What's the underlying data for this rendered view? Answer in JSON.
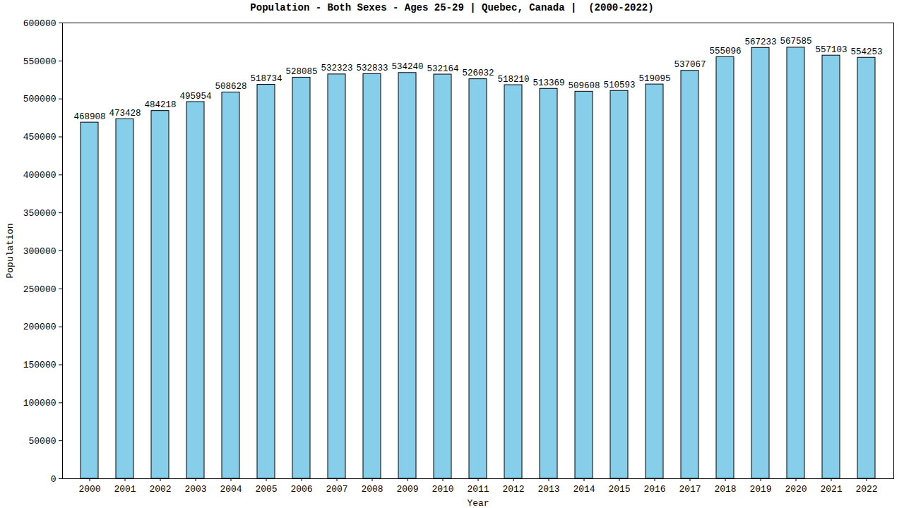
{
  "chart_data": {
    "type": "bar",
    "title": "Population - Both Sexes - Ages 25-29 | Quebec, Canada |  (2000-2022)",
    "x_label": "Year",
    "y_label": "Population",
    "categories": [
      "2000",
      "2001",
      "2002",
      "2003",
      "2004",
      "2005",
      "2006",
      "2007",
      "2008",
      "2009",
      "2010",
      "2011",
      "2012",
      "2013",
      "2014",
      "2015",
      "2016",
      "2017",
      "2018",
      "2019",
      "2020",
      "2021",
      "2022"
    ],
    "values": [
      468908,
      473428,
      484218,
      495954,
      508628,
      518734,
      528085,
      532323,
      532833,
      534240,
      532164,
      526032,
      518210,
      513369,
      509608,
      510593,
      519095,
      537067,
      555096,
      567233,
      567585,
      557103,
      554253
    ],
    "color": "#87ceeb",
    "ylim": [
      0,
      600000
    ],
    "yticks": [
      0,
      50000,
      100000,
      150000,
      200000,
      250000,
      300000,
      350000,
      400000,
      450000,
      500000,
      550000,
      600000
    ],
    "grid": false,
    "data_labels": true
  }
}
